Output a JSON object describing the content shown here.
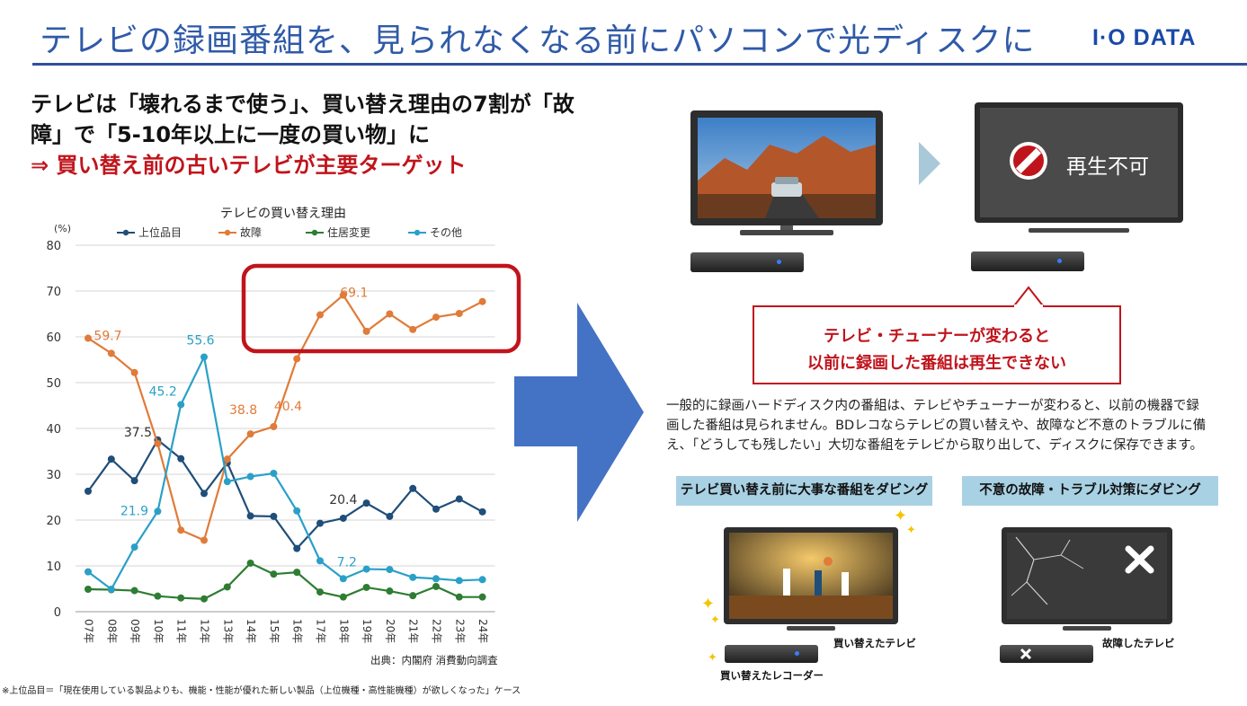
{
  "header": {
    "title": "テレビの録画番組を、見られなくなる前にパソコンで光ディスクに",
    "logo_text": "I·O DATA"
  },
  "headline": {
    "line1": "テレビは「壊れるまで使う」、買い替え理由の7割が「故",
    "line2": "障」で「5-10年以上に一度の買い物」に",
    "line3": "⇒ 買い替え前の古いテレビが主要ターゲット"
  },
  "chart_data": {
    "type": "line",
    "title": "テレビの買い替え理由",
    "ylabel": "(%)",
    "ylim": [
      0,
      80
    ],
    "yticks": [
      "0",
      "10",
      "20",
      "30",
      "40",
      "50",
      "60",
      "70",
      "80"
    ],
    "categories": [
      "07年",
      "08年",
      "09年",
      "10年",
      "11年",
      "12年",
      "13年",
      "14年",
      "15年",
      "16年",
      "17年",
      "18年",
      "19年",
      "20年",
      "21年",
      "22年",
      "23年",
      "24年"
    ],
    "legend_position": "top",
    "grid": true,
    "series": [
      {
        "name": "上位品目",
        "color": "#1f4e79",
        "values": [
          26.3,
          33.3,
          28.6,
          37.5,
          33.4,
          25.8,
          32.5,
          20.9,
          20.8,
          13.8,
          19.3,
          20.4,
          23.7,
          20.8,
          26.9,
          22.4,
          24.6,
          21.8
        ]
      },
      {
        "name": "故障",
        "color": "#e07b39",
        "values": [
          59.7,
          56.4,
          52.2,
          36.7,
          17.8,
          15.6,
          33.3,
          38.8,
          40.4,
          55.2,
          64.8,
          69.1,
          61.2,
          65.0,
          61.6,
          64.3,
          65.1,
          67.7
        ]
      },
      {
        "name": "住居変更",
        "color": "#2e7d32",
        "values": [
          4.9,
          4.8,
          4.6,
          3.4,
          3.0,
          2.8,
          5.4,
          10.6,
          8.2,
          8.6,
          4.3,
          3.2,
          5.3,
          4.5,
          3.5,
          5.5,
          3.2,
          3.2
        ]
      },
      {
        "name": "その他",
        "color": "#2aa0c8",
        "values": [
          8.7,
          4.9,
          14.1,
          21.9,
          45.2,
          55.6,
          28.4,
          29.5,
          30.2,
          22.0,
          11.1,
          7.2,
          9.3,
          9.2,
          7.5,
          7.2,
          6.8,
          7.0
        ]
      }
    ],
    "data_labels": [
      {
        "series": "故障",
        "category": "07年",
        "text": "59.7"
      },
      {
        "series": "故障",
        "category": "14年",
        "text": "38.8"
      },
      {
        "series": "故障",
        "category": "15年",
        "text": "40.4"
      },
      {
        "series": "故障",
        "category": "18年",
        "text": "69.1"
      },
      {
        "series": "その他",
        "category": "10年",
        "text": "21.9"
      },
      {
        "series": "その他",
        "category": "11年",
        "text": "45.2"
      },
      {
        "series": "その他",
        "category": "12年",
        "text": "55.6"
      },
      {
        "series": "その他",
        "category": "18年",
        "text": "7.2"
      },
      {
        "series": "上位品目",
        "category": "10年",
        "text": "37.5"
      },
      {
        "series": "上位品目",
        "category": "18年",
        "text": "20.4"
      }
    ],
    "highlight_color": "#c0141c",
    "source": "出典：内閣府 消費動向調査"
  },
  "footnote": "※上位品目＝「現在使用している製品よりも、機能・性能が優れた新しい製品（上位機種・高性能機種）が欲しくなった」ケース",
  "right_panel": {
    "no_play_label": "再生不可",
    "callout_line1": "テレビ・チューナーが変わると",
    "callout_line2": "以前に録画した番組は再生できない",
    "description": [
      "一般的に録画ハードディスク内の番組は、テレビやチューナーが変わると、以前の機器で録",
      "画した番組は見られません。BDレコならテレビの買い替えや、故障など不意のトラブルに備",
      "え、「どうしても残したい」大切な番組をテレビから取り出して、ディスクに保存できます。"
    ],
    "label_left": "テレビ買い替え前に大事な番組をダビング",
    "label_right": "不意の故障・トラブル対策にダビング",
    "caption_new_tv": "買い替えたテレビ",
    "caption_new_recorder": "買い替えたレコーダー",
    "caption_broken_tv": "故障したテレビ"
  },
  "colors": {
    "title_blue": "#2f5aa8",
    "accent_red": "#c0141c",
    "label_blue": "#a9d1e4",
    "arrow_blue": "#4472c4"
  }
}
